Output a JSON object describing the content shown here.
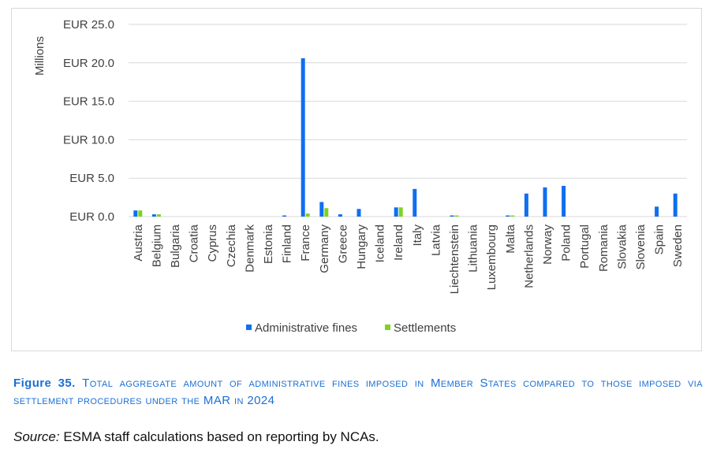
{
  "chart_data": {
    "type": "bar",
    "ylabel": "Millions",
    "ylim": [
      0,
      25
    ],
    "yticks": [
      0,
      5,
      10,
      15,
      20,
      25
    ],
    "ytick_labels": [
      "EUR 0.0",
      "EUR 5.0",
      "EUR 10.0",
      "EUR 15.0",
      "EUR 20.0",
      "EUR 25.0"
    ],
    "grid": true,
    "legend_position": "bottom",
    "categories": [
      "Austria",
      "Belgium",
      "Bulgaria",
      "Croatia",
      "Cyprus",
      "Czechia",
      "Denmark",
      "Estonia",
      "Finland",
      "France",
      "Germany",
      "Greece",
      "Hungary",
      "Iceland",
      "Ireland",
      "Italy",
      "Latvia",
      "Liechtenstein",
      "Lithuania",
      "Luxembourg",
      "Malta",
      "Netherlands",
      "Norway",
      "Poland",
      "Portugal",
      "Romania",
      "Slovakia",
      "Slovenia",
      "Spain",
      "Sweden"
    ],
    "series": [
      {
        "name": "Administrative fines",
        "color": "#0f6ff0",
        "values": [
          0.8,
          0.3,
          0,
          0,
          0,
          0,
          0,
          0,
          0.1,
          20.6,
          1.9,
          0.3,
          1.0,
          0,
          1.2,
          3.6,
          0,
          0.1,
          0,
          0,
          0.1,
          3.0,
          3.8,
          4.0,
          0,
          0,
          0,
          0,
          1.3,
          3.0
        ]
      },
      {
        "name": "Settlements",
        "color": "#7ed321",
        "values": [
          0.8,
          0.3,
          0,
          0,
          0,
          0,
          0,
          0,
          0,
          0.4,
          1.1,
          0,
          0,
          0,
          1.2,
          0,
          0,
          0.1,
          0,
          0,
          0.1,
          0,
          0,
          0,
          0,
          0,
          0,
          0,
          0,
          0
        ]
      }
    ]
  },
  "caption": {
    "figure_label": "Figure 35.",
    "text": "Total aggregate amount of administrative fines imposed in Member States compared to those imposed via settlement procedures under the MAR in 2024"
  },
  "source": {
    "label": "Source:",
    "text": " ESMA staff calculations based on reporting by NCAs."
  }
}
